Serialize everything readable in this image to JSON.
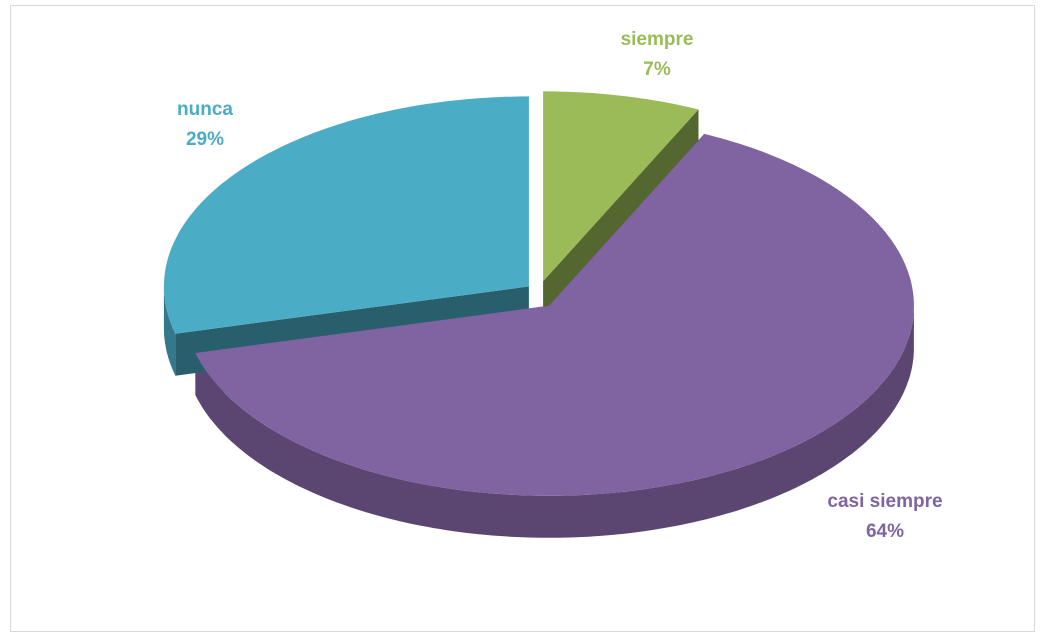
{
  "chart_data": {
    "type": "pie",
    "categories": [
      "siempre",
      "casi siempre",
      "nunca"
    ],
    "values": [
      7,
      64,
      29
    ],
    "value_labels": [
      "7%",
      "64%",
      "29%"
    ],
    "colors": [
      "#9bbb59",
      "#8064a2",
      "#4bacc6"
    ]
  }
}
